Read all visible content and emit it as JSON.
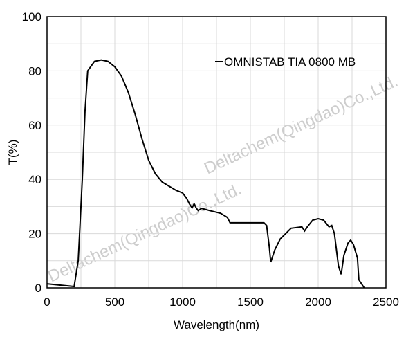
{
  "chart_data": {
    "type": "line",
    "title": "",
    "xlabel": "Wavelength(nm)",
    "ylabel": "T(%)",
    "xlim": [
      0,
      2500
    ],
    "ylim": [
      0,
      100
    ],
    "xticks": [
      0,
      500,
      1000,
      1500,
      2000,
      2500
    ],
    "yticks": [
      0,
      20,
      40,
      60,
      80,
      100
    ],
    "grid": true,
    "legend_position": "top-right",
    "series": [
      {
        "name": "OMNISTAB TIA 0800 MB",
        "color": "#000000",
        "x": [
          0,
          200,
          230,
          260,
          280,
          300,
          350,
          400,
          450,
          500,
          550,
          600,
          650,
          700,
          750,
          800,
          850,
          900,
          950,
          1000,
          1030,
          1050,
          1070,
          1085,
          1100,
          1115,
          1140,
          1200,
          1280,
          1330,
          1350,
          1600,
          1620,
          1640,
          1650,
          1680,
          1720,
          1760,
          1800,
          1880,
          1900,
          1920,
          1960,
          2000,
          2040,
          2080,
          2100,
          2120,
          2150,
          2170,
          2190,
          2220,
          2240,
          2260,
          2290,
          2300,
          2340
        ],
        "y": [
          1.5,
          0.5,
          10,
          40,
          65,
          80,
          83.5,
          84,
          83.5,
          81.5,
          78,
          72,
          64,
          55,
          47,
          42,
          39,
          37.5,
          36,
          35,
          33,
          31,
          29.5,
          31,
          29.5,
          28.5,
          29.3,
          28.5,
          27.5,
          26,
          24,
          24,
          23,
          15,
          9.5,
          14,
          18,
          20,
          22,
          22.5,
          21,
          22.5,
          25,
          25.5,
          25,
          22.5,
          23,
          20,
          8,
          5,
          12,
          16.5,
          17.6,
          16,
          11,
          3,
          0
        ]
      }
    ]
  },
  "watermark": "Deltachem(Qingdao)Co.,Ltd."
}
